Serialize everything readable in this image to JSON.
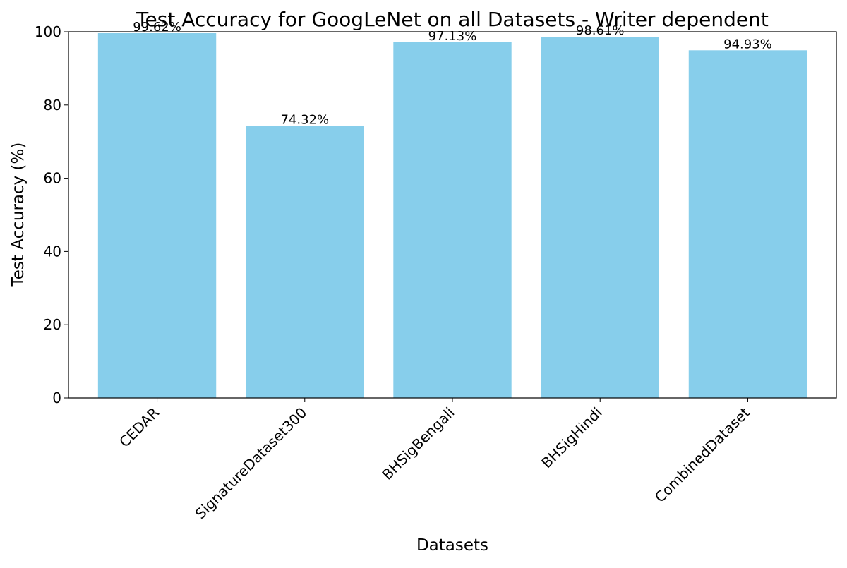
{
  "chart_data": {
    "type": "bar",
    "title": "Test Accuracy for GoogLeNet on all Datasets - Writer dependent",
    "xlabel": "Datasets",
    "ylabel": "Test Accuracy (%)",
    "categories": [
      "CEDAR",
      "SignatureDataset300",
      "BHSigBengali",
      "BHSigHindi",
      "CombinedDataset"
    ],
    "values": [
      99.62,
      74.32,
      97.13,
      98.61,
      94.93
    ],
    "data_labels": [
      "99.62%",
      "74.32%",
      "97.13%",
      "98.61%",
      "94.93%"
    ],
    "ylim": [
      0,
      100
    ],
    "yticks": [
      0,
      20,
      40,
      60,
      80,
      100
    ],
    "ytick_labels": [
      "0",
      "20",
      "40",
      "60",
      "80",
      "100"
    ],
    "grid": false,
    "legend": "none",
    "bar_color": "#87CEEB"
  }
}
